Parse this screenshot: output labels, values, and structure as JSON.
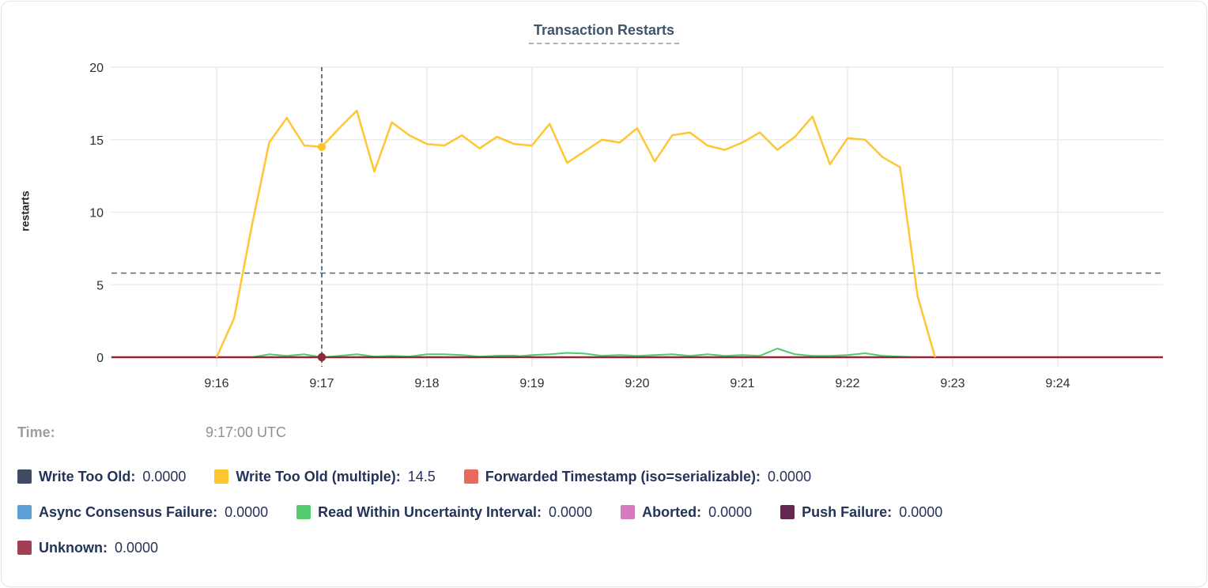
{
  "card": {
    "title": "Transaction Restarts"
  },
  "y_axis": {
    "label": "restarts"
  },
  "hover": {
    "time_label": "Time:",
    "time_value": "9:17:00 UTC",
    "time": "9:17:00",
    "hline_value": 5.8,
    "markers": [
      {
        "series": "unknown",
        "value": 0,
        "color": "#8f2838"
      },
      {
        "series": "write-too-old-multiple",
        "value": 14.5,
        "color": "#ffc52e"
      }
    ]
  },
  "legend": {
    "rows": [
      [
        {
          "key": "write-too-old",
          "label": "Write Too Old:",
          "value": "0.0000",
          "color": "#3f4c66"
        },
        {
          "key": "write-too-old-multiple",
          "label": "Write Too Old (multiple):",
          "value": "14.5",
          "color": "#ffc52e"
        },
        {
          "key": "forwarded-timestamp",
          "label": "Forwarded Timestamp (iso=serializable):",
          "value": "0.0000",
          "color": "#e9695e"
        }
      ],
      [
        {
          "key": "async-consensus-failure",
          "label": "Async Consensus Failure:",
          "value": "0.0000",
          "color": "#5b9fd6"
        },
        {
          "key": "read-within-uncertainty-interval",
          "label": "Read Within Uncertainty Interval:",
          "value": "0.0000",
          "color": "#55cb72"
        },
        {
          "key": "aborted",
          "label": "Aborted:",
          "value": "0.0000",
          "color": "#d67bc0"
        },
        {
          "key": "push-failure",
          "label": "Push Failure:",
          "value": "0.0000",
          "color": "#662850"
        }
      ],
      [
        {
          "key": "unknown",
          "label": "Unknown:",
          "value": "0.0000",
          "color": "#a23f53"
        }
      ]
    ]
  },
  "chart_data": {
    "type": "line",
    "title": "Transaction Restarts",
    "ylabel": "restarts",
    "ylim": [
      0,
      20
    ],
    "y_ticks": [
      0,
      5,
      10,
      15,
      20
    ],
    "x_ticks": [
      "9:16",
      "9:17",
      "9:18",
      "9:19",
      "9:20",
      "9:21",
      "9:22",
      "9:23",
      "9:24"
    ],
    "x_range": [
      "9:15:00",
      "9:25:00"
    ],
    "grid": true,
    "legend_position": "bottom",
    "series": [
      {
        "key": "write-too-old",
        "name": "Write Too Old",
        "color": "#3f4c66",
        "width": 2,
        "times": [
          "9:15:00",
          "9:25:00"
        ],
        "values": [
          0,
          0
        ]
      },
      {
        "key": "async-consensus-failure",
        "name": "Async Consensus Failure",
        "color": "#5b9fd6",
        "width": 2,
        "times": [
          "9:15:00",
          "9:25:00"
        ],
        "values": [
          0,
          0
        ]
      },
      {
        "key": "aborted",
        "name": "Aborted",
        "color": "#d67bc0",
        "width": 2,
        "times": [
          "9:15:00",
          "9:25:00"
        ],
        "values": [
          0,
          0
        ]
      },
      {
        "key": "push-failure",
        "name": "Push Failure",
        "color": "#662850",
        "width": 2,
        "times": [
          "9:15:00",
          "9:25:00"
        ],
        "values": [
          0,
          0
        ]
      },
      {
        "key": "forwarded-timestamp",
        "name": "Forwarded Timestamp (iso=serializable)",
        "color": "#e9695e",
        "width": 2.5,
        "times": [
          "9:15:00",
          "9:18:30",
          "9:18:40",
          "9:18:50",
          "9:19:00",
          "9:25:00"
        ],
        "values": [
          0,
          0,
          0.1,
          0.1,
          0,
          0
        ]
      },
      {
        "key": "read-within-uncertainty-interval",
        "name": "Read Within Uncertainty Interval",
        "color": "#4ecb6f",
        "width": 2,
        "times": [
          "9:16:00",
          "9:16:10",
          "9:16:20",
          "9:16:30",
          "9:16:40",
          "9:16:50",
          "9:17:00",
          "9:17:10",
          "9:17:20",
          "9:17:30",
          "9:17:40",
          "9:17:50",
          "9:18:00",
          "9:18:10",
          "9:18:20",
          "9:18:30",
          "9:18:40",
          "9:18:50",
          "9:19:00",
          "9:19:10",
          "9:19:20",
          "9:19:30",
          "9:19:40",
          "9:19:50",
          "9:20:00",
          "9:20:10",
          "9:20:20",
          "9:20:30",
          "9:20:40",
          "9:20:50",
          "9:21:00",
          "9:21:10",
          "9:21:20",
          "9:21:30",
          "9:21:40",
          "9:21:50",
          "9:22:00",
          "9:22:10",
          "9:22:20",
          "9:22:30",
          "9:22:40",
          "9:22:50"
        ],
        "values": [
          0,
          0,
          0,
          0.2,
          0.1,
          0.2,
          0,
          0.1,
          0.2,
          0.05,
          0.1,
          0.05,
          0.2,
          0.2,
          0.15,
          0.05,
          0.1,
          0.05,
          0.15,
          0.2,
          0.3,
          0.25,
          0.1,
          0.15,
          0.1,
          0.15,
          0.2,
          0.1,
          0.2,
          0.1,
          0.15,
          0.1,
          0.6,
          0.2,
          0.1,
          0.1,
          0.15,
          0.27,
          0.1,
          0.05,
          0,
          0
        ]
      },
      {
        "key": "unknown",
        "name": "Unknown",
        "color": "#8f2838",
        "width": 2.2,
        "times": [
          "9:15:00",
          "9:25:00"
        ],
        "values": [
          0,
          0
        ]
      },
      {
        "key": "write-too-old-multiple",
        "name": "Write Too Old (multiple)",
        "color": "#ffc634",
        "width": 2.5,
        "times": [
          "9:16:00",
          "9:16:10",
          "9:16:20",
          "9:16:30",
          "9:16:40",
          "9:16:50",
          "9:17:00",
          "9:17:10",
          "9:17:20",
          "9:17:30",
          "9:17:40",
          "9:17:50",
          "9:18:00",
          "9:18:10",
          "9:18:20",
          "9:18:30",
          "9:18:40",
          "9:18:50",
          "9:19:00",
          "9:19:10",
          "9:19:20",
          "9:19:30",
          "9:19:40",
          "9:19:50",
          "9:20:00",
          "9:20:10",
          "9:20:20",
          "9:20:30",
          "9:20:40",
          "9:20:50",
          "9:21:00",
          "9:21:10",
          "9:21:20",
          "9:21:30",
          "9:21:40",
          "9:21:50",
          "9:22:00",
          "9:22:10",
          "9:22:20",
          "9:22:30",
          "9:22:40",
          "9:22:50"
        ],
        "values": [
          0,
          2.7,
          9.0,
          14.8,
          16.5,
          14.6,
          14.5,
          15.8,
          17.0,
          12.8,
          16.2,
          15.3,
          14.7,
          14.6,
          15.3,
          14.4,
          15.2,
          14.7,
          14.6,
          16.1,
          13.4,
          14.2,
          15.0,
          14.8,
          15.8,
          13.5,
          15.3,
          15.5,
          14.6,
          14.3,
          14.8,
          15.5,
          14.3,
          15.2,
          16.6,
          13.3,
          15.1,
          15.0,
          13.8,
          13.1,
          4.2,
          0
        ]
      }
    ]
  },
  "colors": {
    "crosshair": "#3d566e",
    "avg_dashed_line": "#56758f",
    "gridline": "#ececec",
    "axis_text": "#2e2e2e",
    "title": "#415469",
    "legend_text": "#243359"
  }
}
